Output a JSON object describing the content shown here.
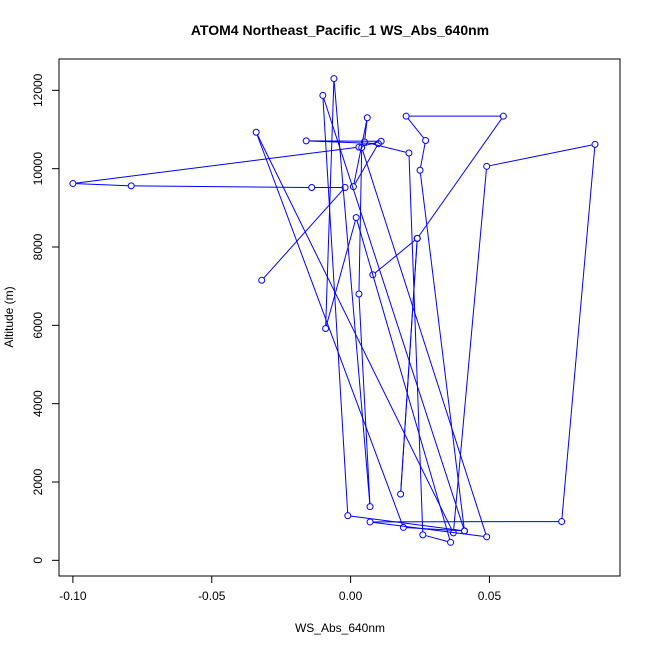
{
  "chart_data": {
    "type": "line",
    "title": "ATOM4 Northeast_Pacific_1 WS_Abs_640nm",
    "xlabel": "WS_Abs_640nm",
    "ylabel": "Altitude (m)",
    "xlim": [
      -0.105,
      0.097
    ],
    "ylim": [
      -400,
      12800
    ],
    "xticks": [
      {
        "value": -0.1,
        "label": "-0.10"
      },
      {
        "value": -0.05,
        "label": "-0.05"
      },
      {
        "value": 0.0,
        "label": "0.00"
      },
      {
        "value": 0.05,
        "label": "0.05"
      }
    ],
    "yticks": [
      {
        "value": 0,
        "label": "0"
      },
      {
        "value": 2000,
        "label": "2000"
      },
      {
        "value": 4000,
        "label": "4000"
      },
      {
        "value": 6000,
        "label": "6000"
      },
      {
        "value": 8000,
        "label": "8000"
      },
      {
        "value": 10000,
        "label": "10000"
      },
      {
        "value": 12000,
        "label": "12000"
      }
    ],
    "series_color": "#0000ff",
    "grid": false,
    "series": [
      {
        "points": [
          {
            "x": -0.032,
            "y": 7150
          },
          {
            "x": -0.002,
            "y": 9520
          },
          {
            "x": -0.014,
            "y": 9520
          },
          {
            "x": -0.079,
            "y": 9560
          },
          {
            "x": -0.1,
            "y": 9620
          },
          {
            "x": 0.003,
            "y": 10550
          },
          {
            "x": 0.011,
            "y": 10700
          },
          {
            "x": -0.016,
            "y": 10710
          },
          {
            "x": 0.01,
            "y": 10640
          },
          {
            "x": 0.001,
            "y": 9540
          },
          {
            "x": 0.006,
            "y": 11300
          },
          {
            "x": 0.005,
            "y": 10680
          },
          {
            "x": 0.021,
            "y": 10400
          },
          {
            "x": 0.026,
            "y": 650
          },
          {
            "x": 0.036,
            "y": 460
          },
          {
            "x": 0.002,
            "y": 8750
          },
          {
            "x": -0.009,
            "y": 5920
          },
          {
            "x": -0.006,
            "y": 12300
          },
          {
            "x": 0.007,
            "y": 1370
          },
          {
            "x": 0.003,
            "y": 6800
          },
          {
            "x": 0.004,
            "y": 10540
          },
          {
            "x": 0.049,
            "y": 600
          },
          {
            "x": 0.007,
            "y": 980
          },
          {
            "x": 0.076,
            "y": 990
          },
          {
            "x": 0.088,
            "y": 10620
          },
          {
            "x": 0.049,
            "y": 10060
          },
          {
            "x": 0.037,
            "y": 700
          },
          {
            "x": -0.034,
            "y": 10930
          },
          {
            "x": 0.019,
            "y": 840
          },
          {
            "x": 0.041,
            "y": 750
          },
          {
            "x": -0.01,
            "y": 11870
          },
          {
            "x": -0.001,
            "y": 1140
          },
          {
            "x": 0.041,
            "y": 750
          },
          {
            "x": 0.025,
            "y": 9960
          },
          {
            "x": 0.027,
            "y": 10720
          },
          {
            "x": 0.02,
            "y": 11340
          },
          {
            "x": 0.055,
            "y": 11340
          },
          {
            "x": 0.024,
            "y": 8220
          },
          {
            "x": 0.018,
            "y": 1690
          },
          {
            "x": 0.024,
            "y": 8220
          },
          {
            "x": 0.008,
            "y": 7290
          }
        ]
      }
    ]
  }
}
